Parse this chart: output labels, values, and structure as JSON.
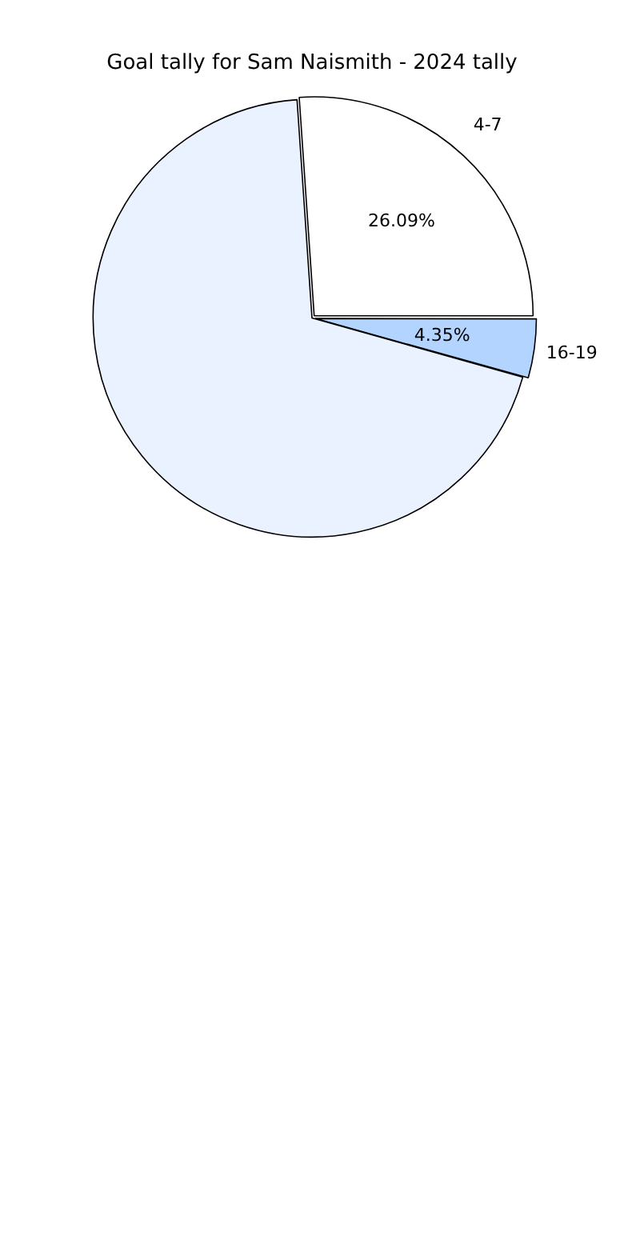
{
  "chart_data": {
    "type": "pie",
    "title": "Goal tally for Sam Naismith - 2024 tally",
    "categories": [
      "4-7",
      "16-19",
      null
    ],
    "values": [
      26.09,
      4.35,
      69.56
    ],
    "colors": [
      "#ffffff",
      "#b3d4ff",
      "#ebf2ff"
    ],
    "value_labels": [
      "26.09%",
      "4.35%",
      null
    ],
    "legend": false
  }
}
